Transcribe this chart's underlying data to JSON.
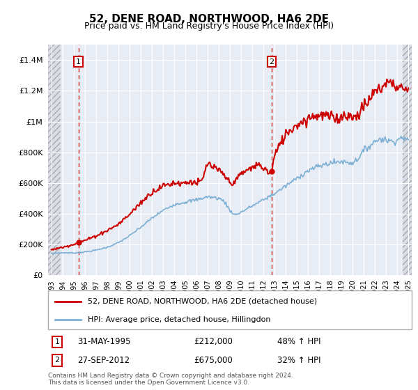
{
  "title": "52, DENE ROAD, NORTHWOOD, HA6 2DE",
  "subtitle": "Price paid vs. HM Land Registry's House Price Index (HPI)",
  "legend_line1": "52, DENE ROAD, NORTHWOOD, HA6 2DE (detached house)",
  "legend_line2": "HPI: Average price, detached house, Hillingdon",
  "annotation1_date": "31-MAY-1995",
  "annotation1_price": 212000,
  "annotation1_price_str": "£212,000",
  "annotation1_pct": "48% ↑ HPI",
  "annotation2_date": "27-SEP-2012",
  "annotation2_price": 675000,
  "annotation2_price_str": "£675,000",
  "annotation2_pct": "32% ↑ HPI",
  "footnote": "Contains HM Land Registry data © Crown copyright and database right 2024.\nThis data is licensed under the Open Government Licence v3.0.",
  "price_color": "#cc0000",
  "hpi_color": "#7bafd4",
  "bg_color": "#e8edf5",
  "hatch_bg": "#d8dde8",
  "grid_color": "#ffffff",
  "ylim_max": 1500000,
  "t1": 1995.42,
  "t2": 2012.75,
  "price1": 212000,
  "price2": 675000,
  "xmin": 1993,
  "xmax": 2025,
  "hpi_pts_x": [
    1993,
    1994,
    1995,
    1996,
    1997,
    1998,
    1999,
    2000,
    2001,
    2002,
    2003,
    2004,
    2005,
    2006,
    2007,
    2008,
    2008.5,
    2009,
    2009.5,
    2010,
    2010.5,
    2011,
    2011.5,
    2012,
    2012.5,
    2013,
    2014,
    2015,
    2016,
    2017,
    2018,
    2019,
    2020,
    2020.5,
    2021,
    2021.5,
    2022,
    2022.5,
    2023,
    2023.5,
    2024,
    2024.5,
    2025
  ],
  "hpi_pts_y": [
    140000,
    145000,
    143000,
    150000,
    162000,
    180000,
    210000,
    255000,
    310000,
    370000,
    420000,
    460000,
    475000,
    490000,
    510000,
    500000,
    480000,
    420000,
    390000,
    410000,
    430000,
    450000,
    470000,
    490000,
    510000,
    530000,
    580000,
    630000,
    680000,
    710000,
    730000,
    740000,
    730000,
    760000,
    810000,
    840000,
    870000,
    890000,
    880000,
    870000,
    880000,
    900000,
    870000
  ],
  "price_pts_x": [
    1993,
    1994,
    1995,
    1995.42,
    1996,
    1997,
    1998,
    1999,
    2000,
    2001,
    2002,
    2003,
    2004,
    2005,
    2005.5,
    2006,
    2006.5,
    2007,
    2007.5,
    2008,
    2008.5,
    2009,
    2009.5,
    2010,
    2010.5,
    2011,
    2011.5,
    2012,
    2012.42,
    2012.75,
    2013,
    2014,
    2015,
    2016,
    2016.5,
    2017,
    2017.5,
    2018,
    2018.5,
    2019,
    2019.5,
    2020,
    2020.5,
    2021,
    2021.5,
    2022,
    2022.5,
    2023,
    2023.5,
    2024,
    2024.5,
    2025
  ],
  "price_pts_y": [
    165000,
    180000,
    200000,
    212000,
    225000,
    255000,
    290000,
    330000,
    395000,
    470000,
    540000,
    580000,
    600000,
    600000,
    610000,
    600000,
    610000,
    730000,
    700000,
    680000,
    650000,
    600000,
    610000,
    660000,
    680000,
    700000,
    720000,
    700000,
    670000,
    675000,
    780000,
    920000,
    980000,
    1020000,
    1040000,
    1040000,
    1040000,
    1030000,
    1020000,
    1030000,
    1050000,
    1020000,
    1050000,
    1100000,
    1140000,
    1200000,
    1210000,
    1260000,
    1250000,
    1230000,
    1220000,
    1200000
  ]
}
